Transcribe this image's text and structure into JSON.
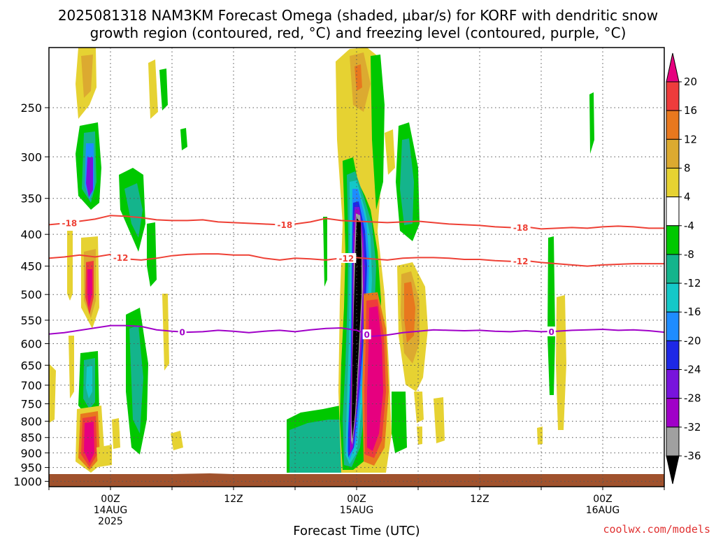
{
  "title_line1": "2025081318 NAM3KM Forecast Omega (shaded, μbar/s) for KORF with dendritic snow",
  "title_line2": "growth region (contoured, red, °C) and freezing level (contoured, purple, °C)",
  "credit": "coolwx.com/models",
  "chart_data": {
    "type": "heatmap",
    "xlabel": "Forecast Time (UTC)",
    "x_ticks": [
      {
        "hour": 6,
        "lines": [
          "00Z",
          "14AUG",
          "2025"
        ]
      },
      {
        "hour": 18,
        "lines": [
          "12Z"
        ]
      },
      {
        "hour": 30,
        "lines": [
          "00Z",
          "15AUG"
        ]
      },
      {
        "hour": 42,
        "lines": [
          "12Z"
        ]
      },
      {
        "hour": 54,
        "lines": [
          "00Z",
          "16AUG"
        ]
      }
    ],
    "xlim": [
      0,
      60
    ],
    "y_ticks": [
      250,
      300,
      350,
      400,
      450,
      500,
      550,
      600,
      650,
      700,
      750,
      800,
      850,
      900,
      950,
      1000
    ],
    "ylim_hpa": [
      200,
      1020
    ],
    "grid": true,
    "colorbar": {
      "labels": [
        "20",
        "16",
        "12",
        "8",
        "4",
        "-4",
        "-8",
        "-12",
        "-16",
        "-20",
        "-24",
        "-28",
        "-32",
        "-36"
      ],
      "colors": [
        "#e6007f",
        "#ee3c3c",
        "#e8781e",
        "#dcaa30",
        "#e6d232",
        "#ffffff",
        "#00c800",
        "#14b48c",
        "#14c8c8",
        "#1e8cff",
        "#1e28e6",
        "#7814dc",
        "#a000c8",
        "#a0a0a0",
        "#000000"
      ]
    },
    "contours": [
      {
        "label": "-18",
        "color": "#ee4035",
        "hours": [
          0,
          1.5,
          3,
          4.5,
          6,
          7.5,
          9,
          10.5,
          12,
          13.5,
          15,
          16.5,
          18,
          19.5,
          21,
          22.5,
          24,
          25.5,
          27,
          28.5,
          30,
          31.5,
          33,
          34.5,
          36,
          37.5,
          39,
          40.5,
          42,
          43.5,
          45,
          46.5,
          48,
          49.5,
          51,
          52.5,
          54,
          55.5,
          57,
          58.5,
          60
        ],
        "hpa": [
          386,
          384,
          381,
          378,
          373,
          374,
          376,
          379,
          380,
          380,
          379,
          382,
          383,
          384,
          385,
          386,
          385,
          382,
          377,
          380,
          381,
          382,
          383,
          382,
          381,
          383,
          385,
          386,
          387,
          389,
          390,
          389,
          392,
          391,
          390,
          391,
          389,
          388,
          389,
          391,
          391
        ],
        "label_hours": [
          2,
          23,
          46
        ]
      },
      {
        "label": "-12",
        "color": "#ee4035",
        "hours": [
          0,
          1.5,
          3,
          4.5,
          6,
          7.5,
          9,
          10.5,
          12,
          13.5,
          15,
          16.5,
          18,
          19.5,
          21,
          22.5,
          24,
          25.5,
          27,
          28.5,
          30,
          31.5,
          33,
          34.5,
          36,
          37.5,
          39,
          40.5,
          42,
          43.5,
          45,
          46.5,
          48,
          49.5,
          51,
          52.5,
          54,
          55.5,
          57,
          58.5,
          60
        ],
        "hpa": [
          437,
          435,
          432,
          435,
          431,
          438,
          440,
          437,
          433,
          431,
          430,
          430,
          432,
          432,
          437,
          440,
          437,
          438,
          440,
          437,
          436,
          438,
          440,
          437,
          436,
          436,
          437,
          439,
          439,
          441,
          442,
          441,
          444,
          446,
          448,
          450,
          448,
          447,
          446,
          446,
          446
        ],
        "label_hours": [
          7,
          29,
          46
        ]
      },
      {
        "label": "0",
        "color": "#a000c8",
        "hours": [
          0,
          1.5,
          3,
          4.5,
          6,
          7.5,
          9,
          10.5,
          12,
          13.5,
          15,
          16.5,
          18,
          19.5,
          21,
          22.5,
          24,
          25.5,
          27,
          28.5,
          30,
          31.5,
          33,
          34.5,
          36,
          37.5,
          39,
          40.5,
          42,
          43.5,
          45,
          46.5,
          48,
          49.5,
          51,
          52.5,
          54,
          55.5,
          57,
          58.5,
          60
        ],
        "hpa": [
          579,
          576,
          571,
          566,
          561,
          561,
          563,
          570,
          573,
          575,
          574,
          571,
          573,
          576,
          573,
          571,
          574,
          570,
          567,
          566,
          571,
          584,
          581,
          576,
          573,
          570,
          571,
          572,
          571,
          573,
          574,
          572,
          574,
          573,
          571,
          570,
          569,
          571,
          570,
          572,
          575
        ],
        "label_hours": [
          13,
          31,
          49
        ]
      }
    ],
    "omega_features": [
      {
        "hour": 26.8,
        "hpa": 220,
        "value": -4,
        "note": "weak"
      },
      {
        "hour": 29.9,
        "hpa": 430,
        "value": -36
      },
      {
        "hour": 29.9,
        "hpa": 650,
        "value": -36
      },
      {
        "hour": 29.9,
        "hpa": 880,
        "value": -36
      },
      {
        "hour": 30.5,
        "hpa": 360,
        "value": -16
      },
      {
        "hour": 31.5,
        "hpa": 300,
        "value": -8
      },
      {
        "hour": 31.4,
        "hpa": 700,
        "value": 20
      },
      {
        "hour": 4,
        "hpa": 320,
        "value": -16
      },
      {
        "hour": 4,
        "hpa": 490,
        "value": 12
      },
      {
        "hour": 4,
        "hpa": 910,
        "value": 20
      },
      {
        "hour": 4,
        "hpa": 700,
        "value": -12
      },
      {
        "hour": 26,
        "hpa": 910,
        "value": -12
      },
      {
        "hour": 34.5,
        "hpa": 520,
        "value": 12
      },
      {
        "hour": 49.3,
        "hpa": 520,
        "value": -8
      },
      {
        "hour": 50.3,
        "hpa": 700,
        "value": 4
      }
    ]
  }
}
